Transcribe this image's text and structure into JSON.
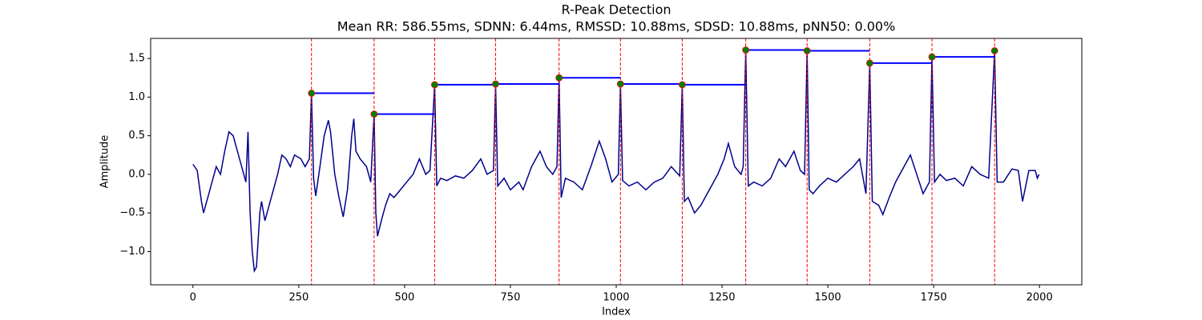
{
  "chart_data": {
    "type": "line",
    "title": "R-Peak Detection",
    "subtitle": "Mean RR: 586.55ms, SDNN: 6.44ms, RMSSD: 10.88ms, SDSD: 10.88ms, pNN50: 0.00%",
    "xlabel": "Index",
    "ylabel": "Amplitude",
    "color": "#00008b",
    "x": [
      0,
      10,
      20,
      25,
      35,
      45,
      55,
      65,
      75,
      85,
      95,
      105,
      115,
      125,
      130,
      135,
      140,
      145,
      150,
      158,
      162,
      170,
      180,
      190,
      200,
      210,
      220,
      230,
      240,
      255,
      265,
      275,
      280,
      285,
      290,
      300,
      310,
      320,
      325,
      335,
      345,
      355,
      365,
      375,
      380,
      385,
      395,
      410,
      420,
      428,
      432,
      436,
      445,
      455,
      465,
      475,
      490,
      505,
      520,
      535,
      550,
      560,
      571,
      576,
      585,
      600,
      620,
      640,
      660,
      680,
      695,
      710,
      715,
      720,
      735,
      750,
      770,
      780,
      800,
      820,
      835,
      850,
      860,
      865,
      870,
      880,
      900,
      920,
      940,
      960,
      975,
      990,
      1005,
      1010,
      1015,
      1030,
      1050,
      1070,
      1090,
      1110,
      1130,
      1150,
      1156,
      1161,
      1170,
      1185,
      1200,
      1220,
      1240,
      1255,
      1265,
      1280,
      1295,
      1300,
      1306,
      1312,
      1325,
      1345,
      1365,
      1385,
      1400,
      1420,
      1435,
      1445,
      1451,
      1456,
      1465,
      1480,
      1500,
      1520,
      1540,
      1560,
      1575,
      1590,
      1599,
      1605,
      1620,
      1630,
      1645,
      1660,
      1680,
      1695,
      1710,
      1725,
      1740,
      1746,
      1752,
      1765,
      1780,
      1800,
      1820,
      1840,
      1860,
      1880,
      1894,
      1900,
      1915,
      1935,
      1950,
      1960,
      1975,
      1990,
      1995,
      1999
    ],
    "values": [
      0.13,
      0.05,
      -0.35,
      -0.5,
      -0.3,
      -0.1,
      0.1,
      0.0,
      0.3,
      0.55,
      0.5,
      0.3,
      0.1,
      -0.1,
      0.55,
      -0.5,
      -1.0,
      -1.25,
      -1.2,
      -0.5,
      -0.35,
      -0.6,
      -0.4,
      -0.2,
      0.0,
      0.25,
      0.2,
      0.1,
      0.25,
      0.2,
      0.1,
      0.2,
      1.05,
      -0.05,
      -0.28,
      0.1,
      0.5,
      0.7,
      0.55,
      0.0,
      -0.3,
      -0.55,
      -0.2,
      0.5,
      0.72,
      0.3,
      0.2,
      0.1,
      -0.1,
      0.78,
      -0.5,
      -0.8,
      -0.6,
      -0.4,
      -0.25,
      -0.3,
      -0.2,
      -0.1,
      0.0,
      0.2,
      0.0,
      0.05,
      1.16,
      -0.15,
      -0.05,
      -0.08,
      -0.02,
      -0.05,
      0.05,
      0.2,
      0.0,
      0.05,
      1.17,
      -0.15,
      -0.05,
      -0.2,
      -0.1,
      -0.2,
      0.1,
      0.3,
      0.1,
      0.0,
      0.1,
      1.25,
      -0.3,
      -0.05,
      -0.1,
      -0.2,
      0.1,
      0.43,
      0.2,
      -0.1,
      0.0,
      1.17,
      -0.08,
      -0.15,
      -0.1,
      -0.2,
      -0.1,
      -0.05,
      0.1,
      -0.02,
      1.16,
      -0.35,
      -0.3,
      -0.5,
      -0.4,
      -0.2,
      0.0,
      0.2,
      0.4,
      0.1,
      0.0,
      0.1,
      1.61,
      -0.15,
      -0.1,
      -0.15,
      -0.05,
      0.2,
      0.1,
      0.3,
      0.05,
      0.0,
      1.6,
      -0.2,
      -0.25,
      -0.15,
      -0.05,
      -0.1,
      0.0,
      0.1,
      0.2,
      -0.25,
      1.44,
      -0.35,
      -0.4,
      -0.52,
      -0.3,
      -0.1,
      0.1,
      0.25,
      0.0,
      -0.25,
      -0.1,
      1.52,
      -0.1,
      0.0,
      -0.08,
      -0.05,
      -0.15,
      0.1,
      0.0,
      -0.05,
      1.6,
      -0.1,
      -0.1,
      0.07,
      0.05,
      -0.35,
      0.05,
      0.05,
      -0.05,
      0.0
    ],
    "peaks": {
      "x": [
        280,
        428,
        571,
        715,
        865,
        1010,
        1156,
        1306,
        1451,
        1599,
        1746,
        1894
      ],
      "values": [
        1.05,
        0.78,
        1.16,
        1.17,
        1.25,
        1.17,
        1.16,
        1.61,
        1.6,
        1.44,
        1.52,
        1.6
      ],
      "color": "green",
      "edge_color": "red",
      "line_color": "red",
      "rr_color": "blue"
    },
    "xlim": [
      -100,
      2100
    ],
    "ylim": [
      -1.43,
      1.76
    ],
    "xticks": [
      0,
      250,
      500,
      750,
      1000,
      1250,
      1500,
      1750,
      2000
    ],
    "yticks": [
      {
        "value": -1,
        "label": "−1.0"
      },
      {
        "value": -0.5,
        "label": "−0.5"
      },
      {
        "value": 0,
        "label": "0.0"
      },
      0.5,
      {
        "value": 1,
        "label": "1.0"
      },
      1.5
    ]
  }
}
